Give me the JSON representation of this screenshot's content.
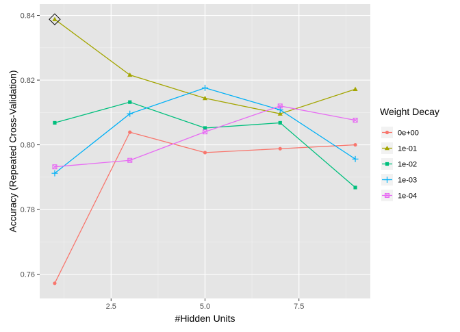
{
  "chart_data": {
    "type": "line",
    "xlabel": "#Hidden Units",
    "ylabel": "Accuracy (Repeated Cross-Validation)",
    "xlim": [
      0.6,
      9.4
    ],
    "ylim": [
      0.7525,
      0.8435
    ],
    "x_ticks": [
      2.5,
      5.0,
      7.5
    ],
    "x_tick_labels": [
      "2.5",
      "5.0",
      "7.5"
    ],
    "y_ticks": [
      0.76,
      0.78,
      0.8,
      0.82,
      0.84
    ],
    "y_tick_labels": [
      "0.76",
      "0.78",
      "0.80",
      "0.82",
      "0.84"
    ],
    "grid": true,
    "legend": {
      "title": "Weight Decay",
      "position": "right"
    },
    "x": [
      1,
      3,
      5,
      7,
      9
    ],
    "series": [
      {
        "name": "0e+00",
        "color": "#F8766D",
        "marker": "circle",
        "values": [
          0.7572,
          0.8039,
          0.7976,
          0.7988,
          0.8
        ]
      },
      {
        "name": "1e-01",
        "color": "#A3A500",
        "marker": "triangle",
        "values": [
          0.8388,
          0.8216,
          0.8144,
          0.8096,
          0.8172
        ]
      },
      {
        "name": "1e-02",
        "color": "#00BF7D",
        "marker": "square",
        "values": [
          0.8068,
          0.8132,
          0.8052,
          0.8068,
          0.7868
        ]
      },
      {
        "name": "1e-03",
        "color": "#00B0F6",
        "marker": "plus",
        "values": [
          0.7912,
          0.8096,
          0.8176,
          0.8108,
          0.7956
        ]
      },
      {
        "name": "1e-04",
        "color": "#E76BF3",
        "marker": "boxed-x",
        "values": [
          0.7932,
          0.7952,
          0.804,
          0.812,
          0.8076
        ]
      }
    ],
    "annotations": [
      {
        "type": "diamond",
        "x": 1,
        "y": 0.8388
      }
    ]
  }
}
